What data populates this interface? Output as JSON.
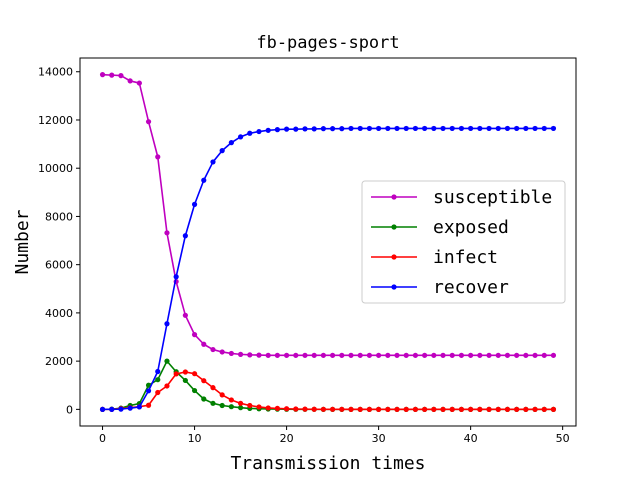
{
  "chart_data": {
    "type": "line",
    "title": "fb-pages-sport",
    "xlabel": "Transmission times",
    "ylabel": "Number",
    "xlim": [
      -2.45,
      51.45
    ],
    "ylim": [
      -690,
      14570
    ],
    "xticks": [
      0,
      10,
      20,
      30,
      40,
      50
    ],
    "yticks": [
      0,
      2000,
      4000,
      6000,
      8000,
      10000,
      12000,
      14000
    ],
    "grid": false,
    "legend_position": "center-right",
    "x": [
      0,
      1,
      2,
      3,
      4,
      5,
      6,
      7,
      8,
      9,
      10,
      11,
      12,
      13,
      14,
      15,
      16,
      17,
      18,
      19,
      20,
      21,
      22,
      23,
      24,
      25,
      26,
      27,
      28,
      29,
      30,
      31,
      32,
      33,
      34,
      35,
      36,
      37,
      38,
      39,
      40,
      41,
      42,
      43,
      44,
      45,
      46,
      47,
      48,
      49
    ],
    "series": [
      {
        "name": "susceptible",
        "color": "#bf00bf",
        "values": [
          13880,
          13860,
          13840,
          13620,
          13530,
          11930,
          10470,
          7320,
          5300,
          3900,
          3100,
          2700,
          2480,
          2380,
          2320,
          2280,
          2260,
          2250,
          2240,
          2240,
          2240,
          2240,
          2240,
          2240,
          2240,
          2240,
          2240,
          2240,
          2240,
          2240,
          2240,
          2240,
          2240,
          2240,
          2240,
          2240,
          2240,
          2240,
          2240,
          2240,
          2240,
          2240,
          2240,
          2240,
          2240,
          2240,
          2240,
          2240,
          2240,
          2240
        ]
      },
      {
        "name": "exposed",
        "color": "#008000",
        "values": [
          0,
          10,
          50,
          160,
          240,
          1000,
          1230,
          2000,
          1560,
          1200,
          780,
          430,
          250,
          160,
          110,
          70,
          40,
          25,
          15,
          10,
          5,
          3,
          2,
          1,
          0,
          0,
          0,
          0,
          0,
          0,
          0,
          0,
          0,
          0,
          0,
          0,
          0,
          0,
          0,
          0,
          0,
          0,
          0,
          0,
          0,
          0,
          0,
          0,
          0,
          0
        ]
      },
      {
        "name": "infect",
        "color": "#ff0000",
        "values": [
          0,
          0,
          30,
          70,
          110,
          170,
          700,
          970,
          1470,
          1550,
          1480,
          1190,
          900,
          600,
          390,
          250,
          160,
          100,
          60,
          40,
          25,
          15,
          10,
          5,
          3,
          2,
          1,
          0,
          0,
          0,
          0,
          0,
          0,
          0,
          0,
          0,
          0,
          0,
          0,
          0,
          0,
          0,
          0,
          0,
          0,
          0,
          0,
          0,
          0,
          0
        ]
      },
      {
        "name": "recover",
        "color": "#0000ff",
        "values": [
          0,
          0,
          10,
          50,
          100,
          770,
          1570,
          3550,
          5500,
          7200,
          8500,
          9500,
          10260,
          10730,
          11060,
          11300,
          11450,
          11520,
          11570,
          11600,
          11620,
          11620,
          11630,
          11630,
          11640,
          11640,
          11640,
          11650,
          11650,
          11650,
          11650,
          11650,
          11650,
          11650,
          11650,
          11650,
          11650,
          11650,
          11650,
          11650,
          11650,
          11650,
          11650,
          11650,
          11650,
          11650,
          11650,
          11650,
          11650,
          11650
        ]
      }
    ]
  }
}
